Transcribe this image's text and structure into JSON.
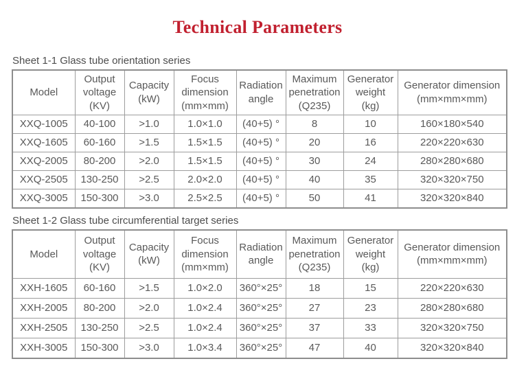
{
  "page": {
    "title": "Technical Parameters"
  },
  "colors": {
    "title_red": "#c1202f",
    "table_text_gray": "#595959",
    "border_gray": "#9c9c9c"
  },
  "tables": [
    {
      "caption": "Sheet 1-1 Glass tube orientation series",
      "headers": [
        "Model",
        "Output voltage (KV)",
        "Capacity (kW)",
        "Focus dimension (mm×mm)",
        "Radiation angle",
        "Maximum penetration (Q235)",
        "Generator weight (kg)",
        "Generator dimension (mm×mm×mm)"
      ],
      "rows": [
        [
          "XXQ-1005",
          "40-100",
          ">1.0",
          "1.0×1.0",
          "(40+5) °",
          "8",
          "10",
          "160×180×540"
        ],
        [
          "XXQ-1605",
          "60-160",
          ">1.5",
          "1.5×1.5",
          "(40+5) °",
          "20",
          "16",
          "220×220×630"
        ],
        [
          "XXQ-2005",
          "80-200",
          ">2.0",
          "1.5×1.5",
          "(40+5) °",
          "30",
          "24",
          "280×280×680"
        ],
        [
          "XXQ-2505",
          "130-250",
          ">2.5",
          "2.0×2.0",
          "(40+5) °",
          "40",
          "35",
          "320×320×750"
        ],
        [
          "XXQ-3005",
          "150-300",
          ">3.0",
          "2.5×2.5",
          "(40+5) °",
          "50",
          "41",
          "320×320×840"
        ]
      ]
    },
    {
      "caption": "Sheet 1-2 Glass tube circumferential target series",
      "headers": [
        "Model",
        "Output voltage (KV)",
        "Capacity (kW)",
        "Focus dimension (mm×mm)",
        "Radiation angle",
        "Maximum penetration (Q235)",
        "Generator weight (kg)",
        "Generator dimension (mm×mm×mm)"
      ],
      "rows": [
        [
          "XXH-1605",
          "60-160",
          ">1.5",
          "1.0×2.0",
          "360°×25°",
          "18",
          "15",
          "220×220×630"
        ],
        [
          "XXH-2005",
          "80-200",
          ">2.0",
          "1.0×2.4",
          "360°×25°",
          "27",
          "23",
          "280×280×680"
        ],
        [
          "XXH-2505",
          "130-250",
          ">2.5",
          "1.0×2.4",
          "360°×25°",
          "37",
          "33",
          "320×320×750"
        ],
        [
          "XXH-3005",
          "150-300",
          ">3.0",
          "1.0×3.4",
          "360°×25°",
          "47",
          "40",
          "320×320×840"
        ]
      ]
    }
  ]
}
